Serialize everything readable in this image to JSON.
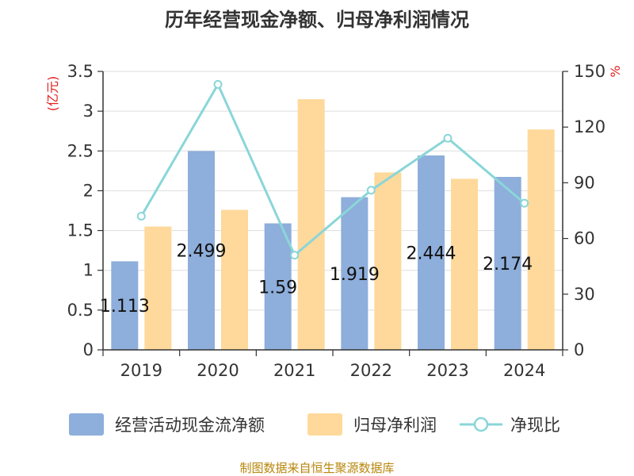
{
  "chart_data": {
    "type": "bar",
    "title": "历年经营现金净额、归母净利润情况",
    "categories": [
      "2019",
      "2020",
      "2021",
      "2022",
      "2023",
      "2024"
    ],
    "series": [
      {
        "name": "经营活动现金流净额",
        "kind": "bar",
        "axis": "left",
        "values": [
          1.113,
          2.499,
          1.59,
          1.919,
          2.444,
          2.174
        ],
        "labels": [
          "1.113",
          "2.499",
          "1.59",
          "1.919",
          "2.444",
          "2.174"
        ],
        "color": "#8eaedb"
      },
      {
        "name": "归母净利润",
        "kind": "bar",
        "axis": "left",
        "values": [
          1.55,
          1.76,
          3.15,
          2.23,
          2.15,
          2.77
        ],
        "color": "#fed99b"
      },
      {
        "name": "净现比",
        "kind": "line",
        "axis": "right",
        "values": [
          72,
          143,
          51,
          86,
          114,
          79
        ],
        "color": "#8ad6d8"
      }
    ],
    "y_left": {
      "unit": "(亿元)",
      "ylim": [
        0,
        3.5
      ],
      "ticks": [
        "0",
        "0.5",
        "1",
        "1.5",
        "2",
        "2.5",
        "3",
        "3.5"
      ]
    },
    "y_right": {
      "unit": "%",
      "ylim": [
        0,
        150
      ],
      "ticks": [
        "0",
        "30",
        "60",
        "90",
        "120",
        "150"
      ]
    },
    "grid": true,
    "legend_position": "bottom"
  },
  "source": "制图数据来自恒生聚源数据库"
}
